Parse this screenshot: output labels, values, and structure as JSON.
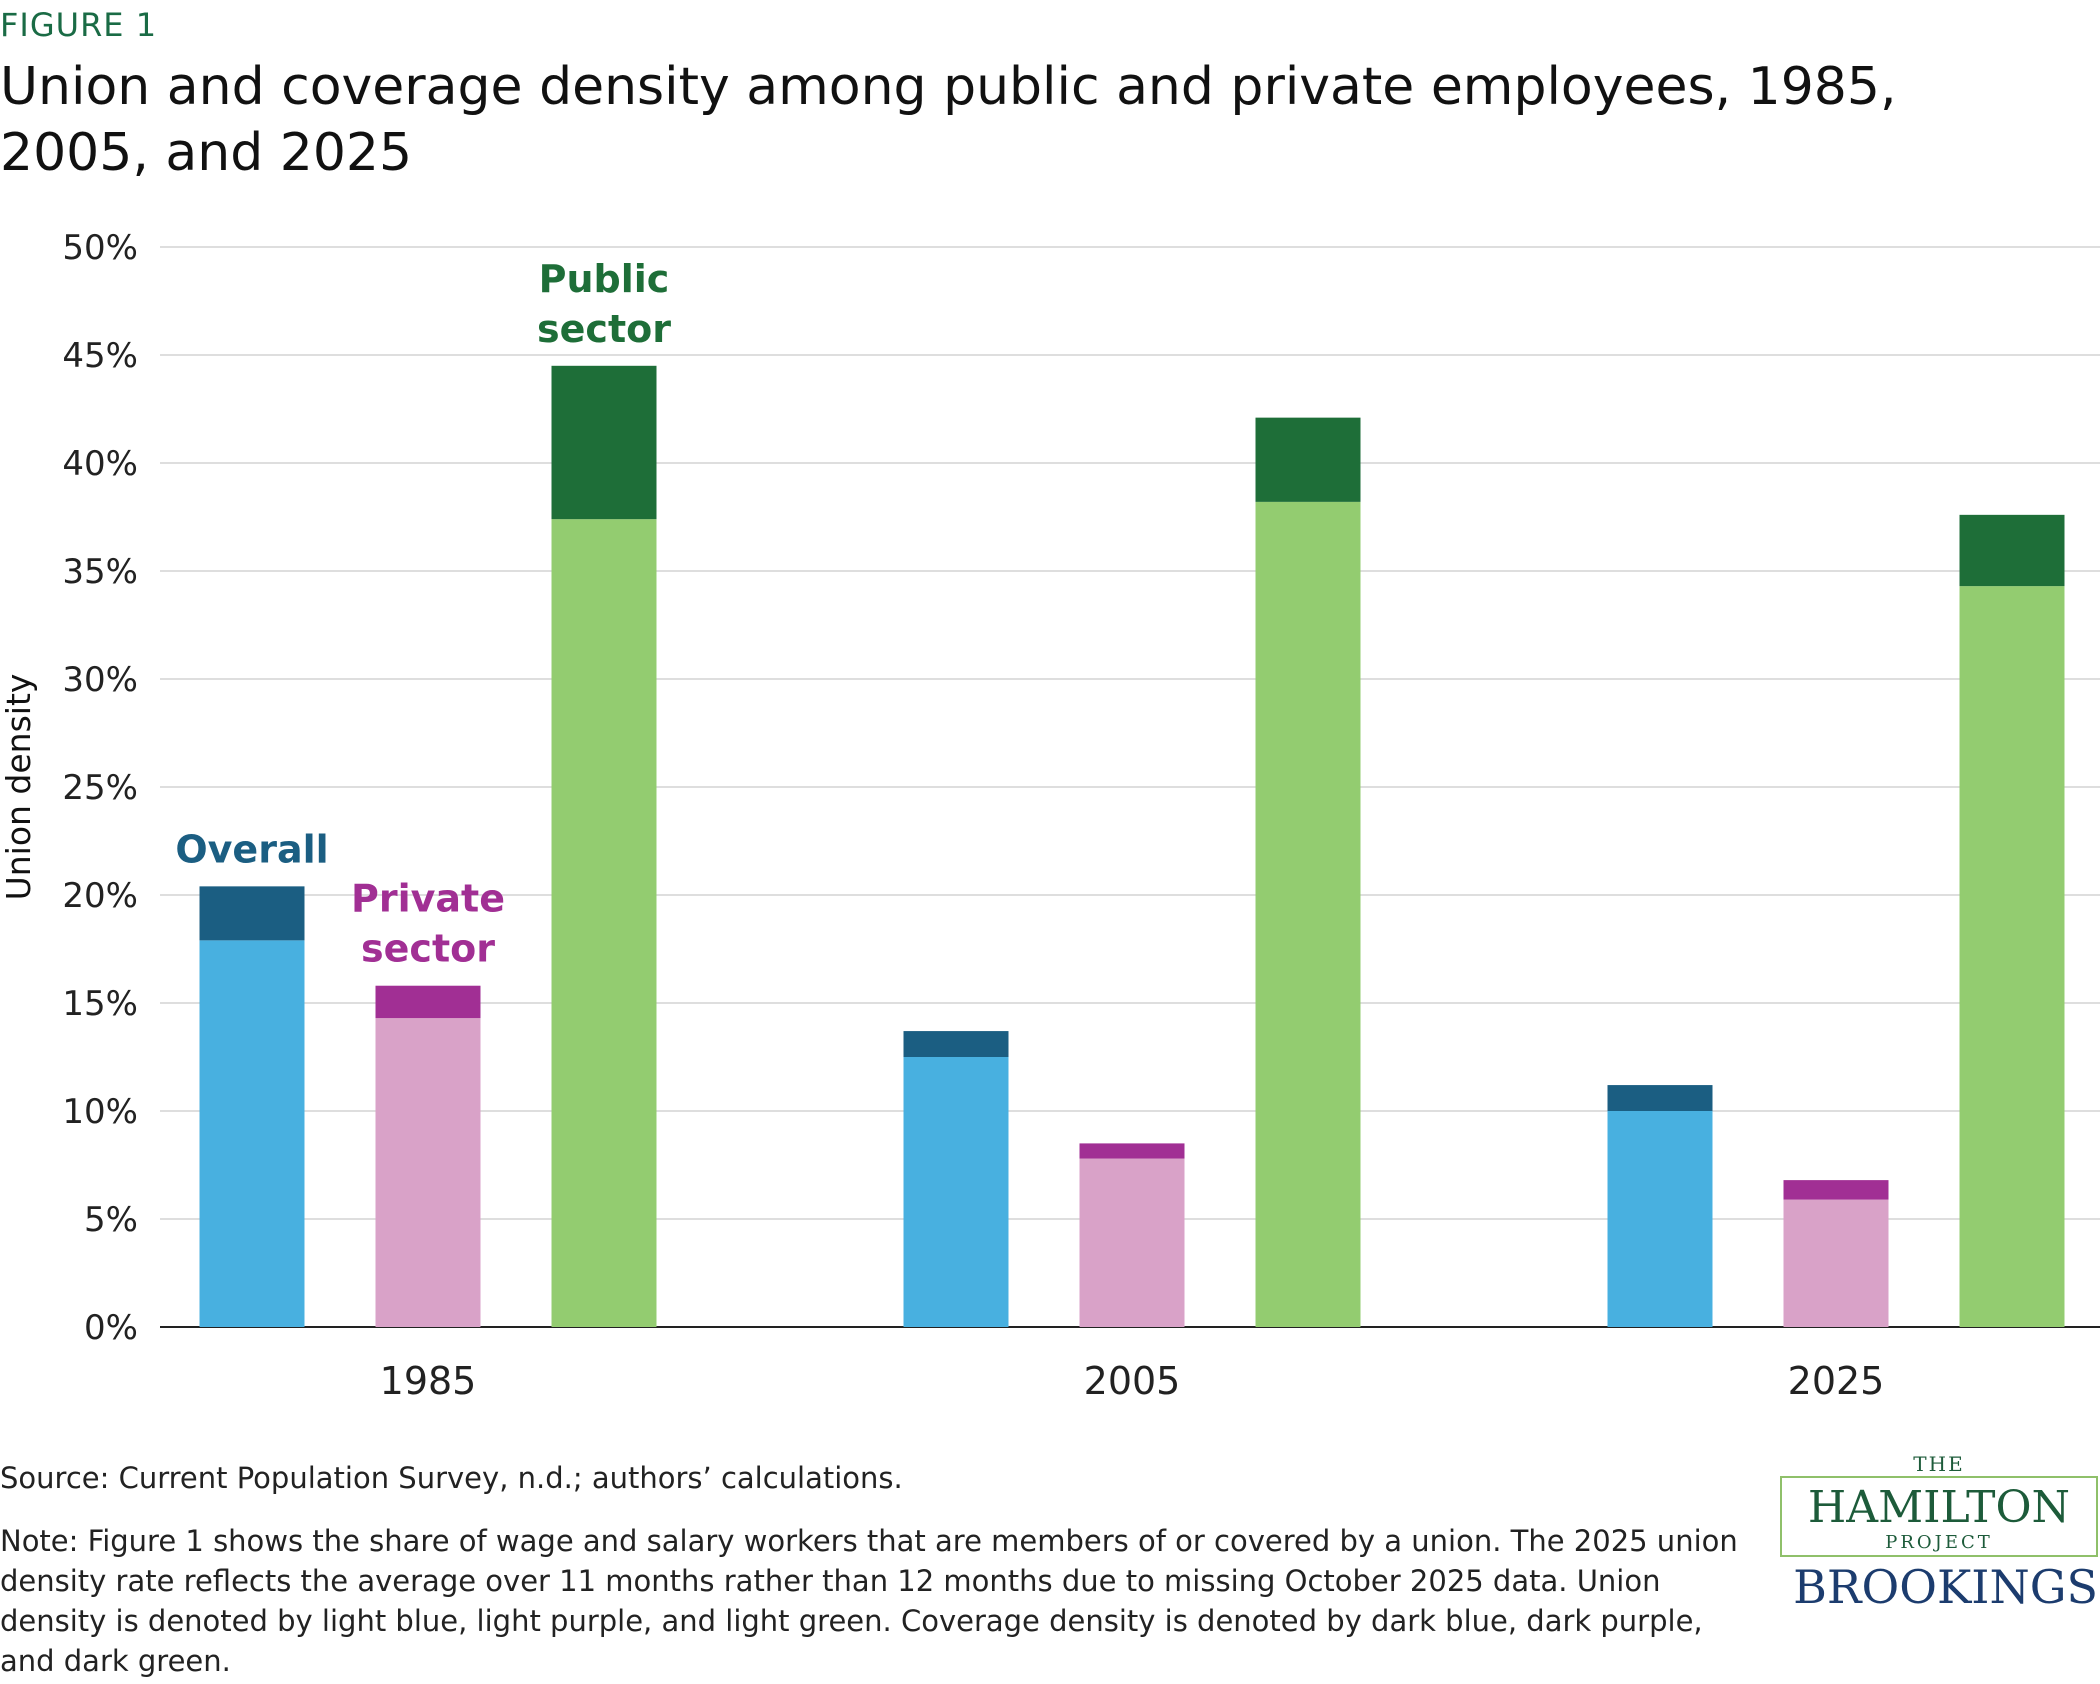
{
  "figure_label": "FIGURE 1",
  "title": "Union and coverage density among public and private employees, 1985, 2005, and 2025",
  "source": "Source: Current Population Survey, n.d.; authors’ calculations.",
  "note": "Note: Figure 1 shows the share of wage and salary workers that are members of or covered by a union. The 2025 union density rate reflects the average over 11 months rather than 12 months due to missing October 2025 data. Union density is denoted by light blue, light purple, and light green. Coverage density is denoted by dark blue, dark purple, and dark green.",
  "logos": {
    "hamilton_the": "THE",
    "hamilton_name": "HAMILTON",
    "hamilton_project": "PROJECT",
    "brookings": "BROOKINGS"
  },
  "chart_data": {
    "type": "bar",
    "stacked": true,
    "categories": [
      "1985",
      "2005",
      "2025"
    ],
    "ylabel": "Union density",
    "ylim": [
      0,
      50
    ],
    "yticks": [
      "0%",
      "5%",
      "10%",
      "15%",
      "20%",
      "25%",
      "30%",
      "35%",
      "40%",
      "45%",
      "50%"
    ],
    "grid": true,
    "series": [
      {
        "name": "Overall",
        "union_density": [
          17.9,
          12.5,
          10.0
        ],
        "coverage_density": [
          20.4,
          13.7,
          11.2
        ],
        "colors": {
          "union": "#48b0e0",
          "coverage": "#1b5e82"
        },
        "label_color": "#1b5e82"
      },
      {
        "name": "Private sector",
        "union_density": [
          14.3,
          7.8,
          5.9
        ],
        "coverage_density": [
          15.8,
          8.5,
          6.8
        ],
        "colors": {
          "union": "#d9a2c8",
          "coverage": "#a12f94"
        },
        "label_color": "#a12f94"
      },
      {
        "name": "Public sector",
        "union_density": [
          37.4,
          38.2,
          34.3
        ],
        "coverage_density": [
          44.5,
          42.1,
          37.6
        ],
        "colors": {
          "union": "#93cc70",
          "coverage": "#1e6e38"
        },
        "label_color": "#1e6e38"
      }
    ],
    "annotations": [
      {
        "lines": [
          "Overall"
        ],
        "series": 0,
        "category": 0
      },
      {
        "lines": [
          "Private",
          "sector"
        ],
        "series": 1,
        "category": 0
      },
      {
        "lines": [
          "Public",
          "sector"
        ],
        "series": 2,
        "category": 0
      }
    ]
  }
}
